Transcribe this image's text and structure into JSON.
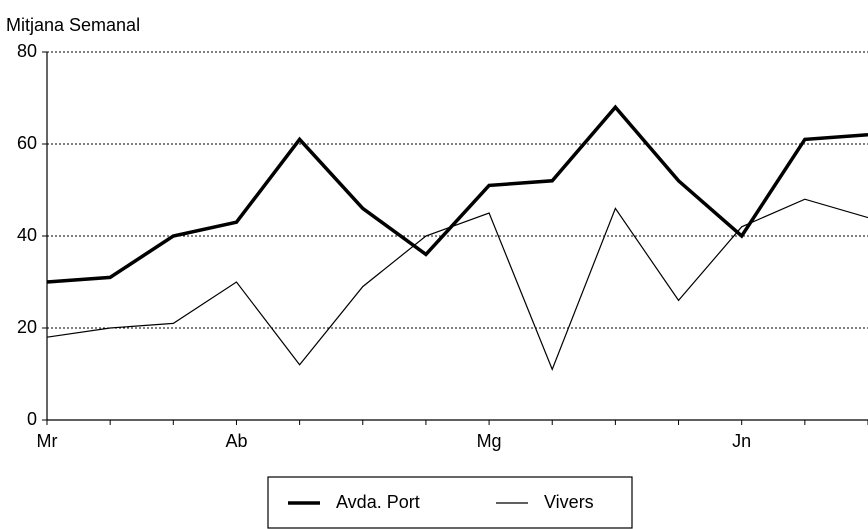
{
  "chart_data": {
    "type": "line",
    "title": "Mitjana Semanal",
    "categories": [
      "Mr",
      null,
      null,
      "Ab",
      null,
      null,
      null,
      "Mg",
      null,
      null,
      null,
      "Jn",
      null,
      null
    ],
    "series": [
      {
        "name": "Avda. Port",
        "color": "#000000",
        "width": 3.5,
        "values": [
          30,
          31,
          40,
          43,
          61,
          46,
          36,
          51,
          52,
          68,
          52,
          40,
          61,
          62
        ]
      },
      {
        "name": "Vivers",
        "color": "#000000",
        "width": 1.2,
        "values": [
          18,
          20,
          21,
          30,
          12,
          29,
          40,
          45,
          11,
          46,
          26,
          42,
          48,
          44
        ]
      }
    ],
    "ylim": [
      0,
      80
    ],
    "yticks": [
      0,
      20,
      40,
      60,
      80
    ],
    "grid": true
  }
}
